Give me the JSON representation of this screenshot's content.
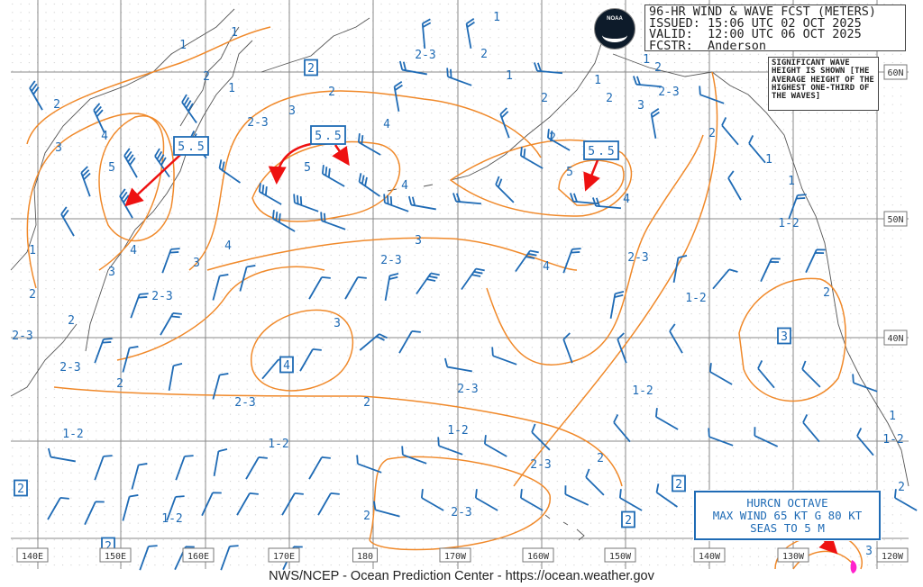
{
  "header": {
    "title": "96-HR WIND & WAVE FCST (METERS)",
    "issued": "ISSUED: 15:06 UTC 02 OCT 2025",
    "valid": "VALID:  12:00 UTC 06 OCT 2025",
    "forecaster": "FCSTR:  Anderson"
  },
  "logo_text": "NOAA",
  "legend_note": "SIGNIFICANT WAVE HEIGHT IS SHOWN [THE AVERAGE HEIGHT OF THE HIGHEST ONE-THIRD OF THE WAVES]",
  "longitude_labels": [
    "140E",
    "150E",
    "160E",
    "170E",
    "180",
    "170W",
    "160W",
    "150W",
    "140W",
    "130W",
    "120W"
  ],
  "latitude_labels": [
    "60N",
    "50N",
    "40N"
  ],
  "wave_height_labels": [
    "1",
    "1",
    "2",
    "1",
    "2",
    "3",
    "4",
    "5",
    "2-3",
    "3",
    "2",
    "2-3",
    "4",
    "5",
    "4",
    "4",
    "3",
    "3",
    "2-3",
    "1",
    "4",
    "3",
    "2",
    "2-3",
    "2",
    "2-3",
    "2-3",
    "2",
    "1-2",
    "3",
    "2-3",
    "1-2",
    "2",
    "2-3",
    "1-2",
    "2",
    "2-3",
    "1-2",
    "2-3",
    "2",
    "2",
    "1-2",
    "1",
    "1-2",
    "1-2",
    "2",
    "1-2",
    "1",
    "1",
    "2",
    "2-3",
    "2",
    "1",
    "1",
    "2",
    "3",
    "2",
    "1",
    "2",
    "1",
    "2",
    "5",
    "4",
    "2-3",
    "4",
    "3"
  ],
  "boxed_heights": [
    "2",
    "2",
    "2",
    "2",
    "2",
    "3",
    "4"
  ],
  "max_seas": [
    "5.5",
    "5.5",
    "5.5"
  ],
  "hurricane": {
    "line1": "HURCN OCTAVE",
    "line2": "MAX WIND 65 KT G 80 KT",
    "line3": "SEAS TO 5 M"
  },
  "footer": "NWS/NCEP - Ocean Prediction Center - https://ocean.weather.gov",
  "colors": {
    "wave_contour": "#f0892a",
    "wind_barb": "#1f6bb5",
    "label": "#1f6bb5",
    "max_arrow": "#ee1111",
    "grid": "#888888",
    "coast": "#555555",
    "storm_center": "#ff22cc"
  }
}
